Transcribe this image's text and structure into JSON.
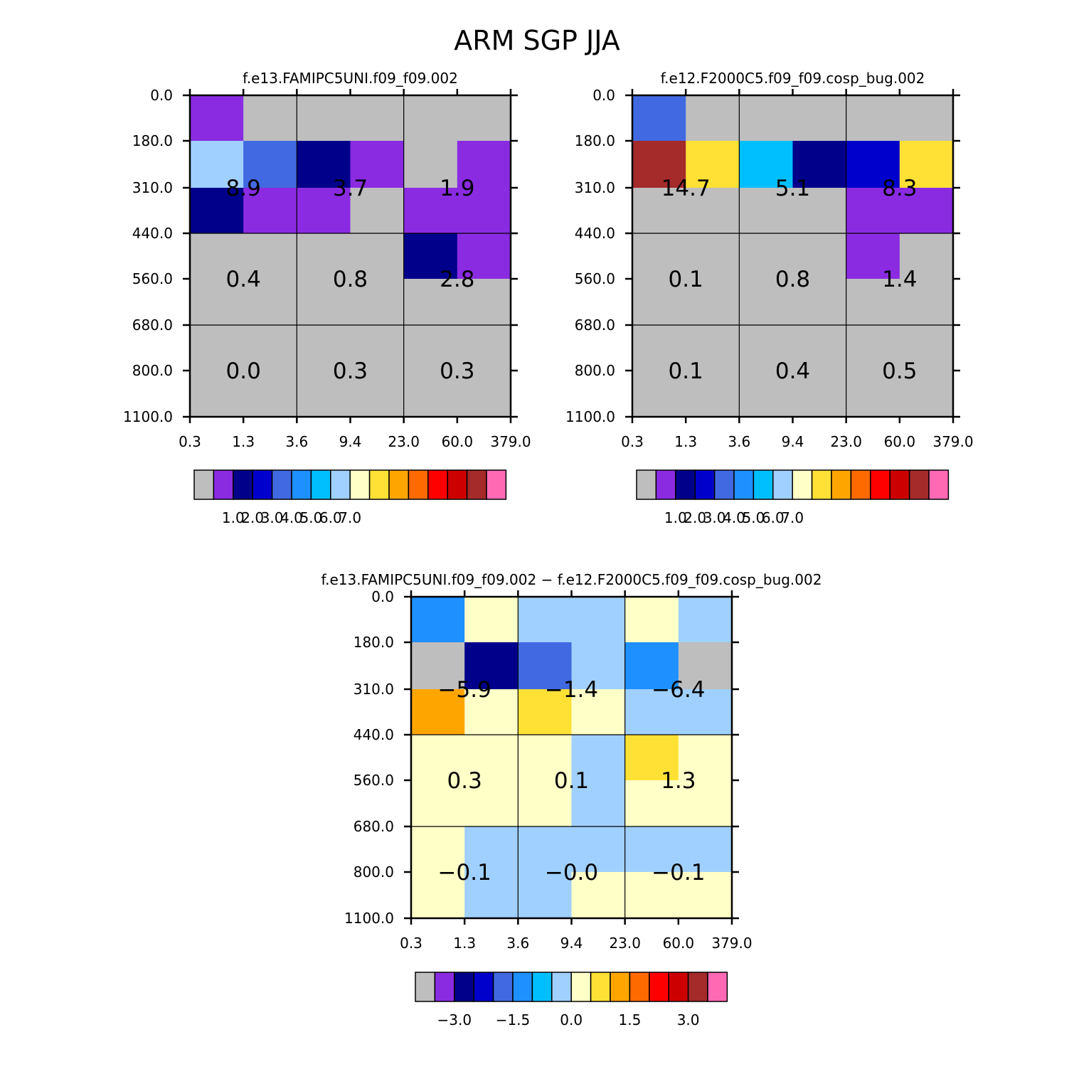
{
  "title": "ARM SGP JJA",
  "chart_data": [
    {
      "type": "heatmap",
      "title": "f.e13.FAMIPC5UNI.f09_f09.002",
      "x_ticks": [
        "0.3",
        "1.3",
        "3.6",
        "9.4",
        "23.0",
        "60.0",
        "379.0"
      ],
      "y_ticks": [
        "0.0",
        "180.0",
        "310.0",
        "440.0",
        "560.0",
        "680.0",
        "800.0",
        "1100.0"
      ],
      "cells": [
        [
          "#8a2be2",
          "#bebebe",
          "#bebebe",
          "#bebebe",
          "#bebebe",
          "#bebebe"
        ],
        [
          "#a0d0ff",
          "#4169e1",
          "#00008b",
          "#8a2be2",
          "#bebebe",
          "#8a2be2"
        ],
        [
          "#00008b",
          "#8a2be2",
          "#8a2be2",
          "#bebebe",
          "#8a2be2",
          "#8a2be2"
        ],
        [
          "#bebebe",
          "#bebebe",
          "#bebebe",
          "#bebebe",
          "#00008b",
          "#8a2be2"
        ],
        [
          "#bebebe",
          "#bebebe",
          "#bebebe",
          "#bebebe",
          "#bebebe",
          "#bebebe"
        ],
        [
          "#bebebe",
          "#bebebe",
          "#bebebe",
          "#bebebe",
          "#bebebe",
          "#bebebe"
        ],
        [
          "#bebebe",
          "#bebebe",
          "#bebebe",
          "#bebebe",
          "#bebebe",
          "#bebebe"
        ]
      ],
      "box_values": [
        [
          "8.9",
          "3.7",
          "1.9"
        ],
        [
          "0.4",
          "0.8",
          "2.8"
        ],
        [
          "0.0",
          "0.3",
          "0.3"
        ]
      ],
      "colorbar": {
        "labels": [
          "1.0",
          "2.0",
          "3.0",
          "4.0",
          "5.0",
          "6.0",
          "7.0"
        ],
        "colors": [
          "#bebebe",
          "#8a2be2",
          "#00008b",
          "#0000cd",
          "#4169e1",
          "#1e90ff",
          "#00bfff",
          "#a0d0ff",
          "#ffffc8",
          "#ffe135",
          "#ffa500",
          "#ff6a00",
          "#ff0000",
          "#cd0000",
          "#a52a2a",
          "#ff69b4"
        ]
      }
    },
    {
      "type": "heatmap",
      "title": "f.e12.F2000C5.f09_f09.cosp_bug.002",
      "x_ticks": [
        "0.3",
        "1.3",
        "3.6",
        "9.4",
        "23.0",
        "60.0",
        "379.0"
      ],
      "y_ticks": [
        "0.0",
        "180.0",
        "310.0",
        "440.0",
        "560.0",
        "680.0",
        "800.0",
        "1100.0"
      ],
      "cells": [
        [
          "#4169e1",
          "#bebebe",
          "#bebebe",
          "#bebebe",
          "#bebebe",
          "#bebebe"
        ],
        [
          "#a52a2a",
          "#ffe135",
          "#00bfff",
          "#00008b",
          "#0000cd",
          "#ffe135"
        ],
        [
          "#bebebe",
          "#bebebe",
          "#bebebe",
          "#bebebe",
          "#8a2be2",
          "#8a2be2"
        ],
        [
          "#bebebe",
          "#bebebe",
          "#bebebe",
          "#bebebe",
          "#8a2be2",
          "#bebebe"
        ],
        [
          "#bebebe",
          "#bebebe",
          "#bebebe",
          "#bebebe",
          "#bebebe",
          "#bebebe"
        ],
        [
          "#bebebe",
          "#bebebe",
          "#bebebe",
          "#bebebe",
          "#bebebe",
          "#bebebe"
        ],
        [
          "#bebebe",
          "#bebebe",
          "#bebebe",
          "#bebebe",
          "#bebebe",
          "#bebebe"
        ]
      ],
      "box_values": [
        [
          "14.7",
          "5.1",
          "8.3"
        ],
        [
          "0.1",
          "0.8",
          "1.4"
        ],
        [
          "0.1",
          "0.4",
          "0.5"
        ]
      ],
      "colorbar": {
        "labels": [
          "1.0",
          "2.0",
          "3.0",
          "4.0",
          "5.0",
          "6.0",
          "7.0"
        ],
        "colors": [
          "#bebebe",
          "#8a2be2",
          "#00008b",
          "#0000cd",
          "#4169e1",
          "#1e90ff",
          "#00bfff",
          "#a0d0ff",
          "#ffffc8",
          "#ffe135",
          "#ffa500",
          "#ff6a00",
          "#ff0000",
          "#cd0000",
          "#a52a2a",
          "#ff69b4"
        ]
      }
    },
    {
      "type": "heatmap",
      "title": "f.e13.FAMIPC5UNI.f09_f09.002 − f.e12.F2000C5.f09_f09.cosp_bug.002",
      "x_ticks": [
        "0.3",
        "1.3",
        "3.6",
        "9.4",
        "23.0",
        "60.0",
        "379.0"
      ],
      "y_ticks": [
        "0.0",
        "180.0",
        "310.0",
        "440.0",
        "560.0",
        "680.0",
        "800.0",
        "1100.0"
      ],
      "cells": [
        [
          "#1e90ff",
          "#ffffc8",
          "#a0d0ff",
          "#a0d0ff",
          "#ffffc8",
          "#a0d0ff"
        ],
        [
          "#bebebe",
          "#00008b",
          "#4169e1",
          "#a0d0ff",
          "#1e90ff",
          "#bebebe"
        ],
        [
          "#ffa500",
          "#ffffc8",
          "#ffe135",
          "#ffffc8",
          "#a0d0ff",
          "#a0d0ff"
        ],
        [
          "#ffffc8",
          "#ffffc8",
          "#ffffc8",
          "#a0d0ff",
          "#ffe135",
          "#ffffc8"
        ],
        [
          "#ffffc8",
          "#ffffc8",
          "#ffffc8",
          "#a0d0ff",
          "#ffffc8",
          "#ffffc8"
        ],
        [
          "#ffffc8",
          "#a0d0ff",
          "#a0d0ff",
          "#a0d0ff",
          "#a0d0ff",
          "#a0d0ff"
        ],
        [
          "#ffffc8",
          "#a0d0ff",
          "#a0d0ff",
          "#ffffc8",
          "#ffffc8",
          "#ffffc8"
        ]
      ],
      "box_values": [
        [
          "−5.9",
          "−1.4",
          "−6.4"
        ],
        [
          "0.3",
          "0.1",
          "1.3"
        ],
        [
          "−0.1",
          "−0.0",
          "−0.1"
        ]
      ],
      "colorbar": {
        "labels": [
          "−3.0",
          "−1.5",
          "0.0",
          "1.5",
          "3.0"
        ],
        "colors": [
          "#bebebe",
          "#8a2be2",
          "#00008b",
          "#0000cd",
          "#4169e1",
          "#1e90ff",
          "#00bfff",
          "#a0d0ff",
          "#ffffc8",
          "#ffe135",
          "#ffa500",
          "#ff6a00",
          "#ff0000",
          "#cd0000",
          "#a52a2a",
          "#ff69b4"
        ]
      }
    }
  ]
}
